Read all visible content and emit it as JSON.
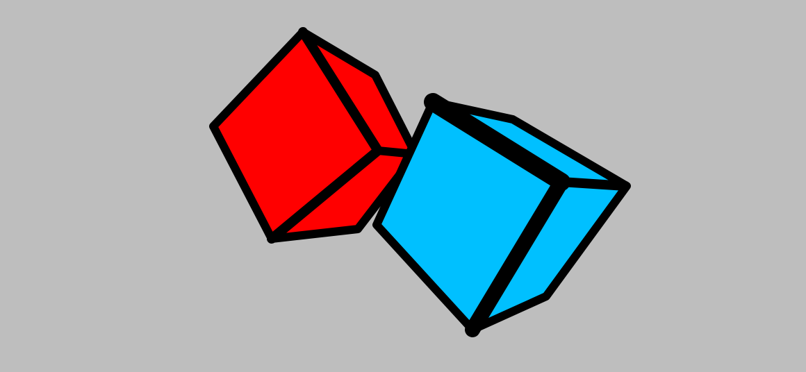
{
  "scene": {
    "background_color": "#bebebe",
    "edge_color": "#000000",
    "cubes": [
      {
        "name": "red-cube",
        "color": "#ff0000",
        "shade_color": "#ff0000"
      },
      {
        "name": "cyan-cube",
        "color": "#00c0ff",
        "shade_color": "#00c0ff"
      }
    ]
  }
}
